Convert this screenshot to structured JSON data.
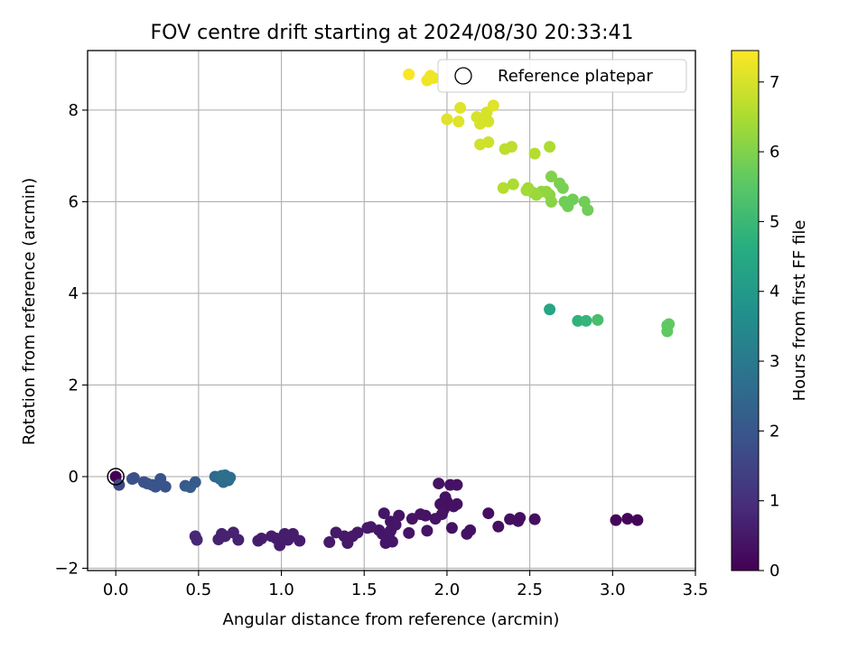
{
  "chart_data": {
    "type": "scatter",
    "title": "FOV centre drift starting at 2024/08/30 20:33:41",
    "xlabel": "Angular distance from reference (arcmin)",
    "ylabel": "Rotation from reference (arcmin)",
    "xlim": [
      -0.17,
      3.5
    ],
    "ylim": [
      -2.05,
      9.3
    ],
    "xticks": [
      "0.0",
      "0.5",
      "1.0",
      "1.5",
      "2.0",
      "2.5",
      "3.0",
      "3.5"
    ],
    "xtick_values": [
      0,
      0.5,
      1.0,
      1.5,
      2.0,
      2.5,
      3.0,
      3.5
    ],
    "yticks": [
      "−2",
      "0",
      "2",
      "4",
      "6",
      "8"
    ],
    "ytick_values": [
      -2,
      0,
      2,
      4,
      6,
      8
    ],
    "grid": true,
    "legend": {
      "position": "top-right",
      "entries": [
        "Reference platepar"
      ]
    },
    "colorbar": {
      "label": "Hours from first FF file",
      "colormap": "viridis",
      "range": [
        0,
        7.45
      ],
      "ticks": [
        "0",
        "1",
        "2",
        "3",
        "4",
        "5",
        "6",
        "7"
      ],
      "tick_values": [
        0,
        1,
        2,
        3,
        4,
        5,
        6,
        7
      ]
    },
    "reference_point": {
      "x": 0,
      "y": 0
    },
    "points": [
      {
        "x": 0.0,
        "y": 0.0,
        "c": 0.0
      },
      {
        "x": 3.02,
        "y": -0.95,
        "c": 0.1
      },
      {
        "x": 3.09,
        "y": -0.92,
        "c": 0.1
      },
      {
        "x": 3.15,
        "y": -0.95,
        "c": 0.1
      },
      {
        "x": 2.53,
        "y": -0.93,
        "c": 0.3
      },
      {
        "x": 2.44,
        "y": -0.9,
        "c": 0.3
      },
      {
        "x": 2.38,
        "y": -0.93,
        "c": 0.3
      },
      {
        "x": 2.43,
        "y": -0.97,
        "c": 0.3
      },
      {
        "x": 2.31,
        "y": -1.09,
        "c": 0.3
      },
      {
        "x": 2.25,
        "y": -0.8,
        "c": 0.3
      },
      {
        "x": 2.14,
        "y": -1.17,
        "c": 0.35
      },
      {
        "x": 2.12,
        "y": -1.25,
        "c": 0.35
      },
      {
        "x": 2.03,
        "y": -1.12,
        "c": 0.35
      },
      {
        "x": 2.06,
        "y": -0.6,
        "c": 0.35
      },
      {
        "x": 2.0,
        "y": -0.55,
        "c": 0.35
      },
      {
        "x": 1.99,
        "y": -0.45,
        "c": 0.35
      },
      {
        "x": 1.98,
        "y": -0.72,
        "c": 0.35
      },
      {
        "x": 1.96,
        "y": -0.6,
        "c": 0.35
      },
      {
        "x": 1.95,
        "y": -0.15,
        "c": 0.35
      },
      {
        "x": 2.02,
        "y": -0.18,
        "c": 0.35
      },
      {
        "x": 2.06,
        "y": -0.18,
        "c": 0.35
      },
      {
        "x": 2.04,
        "y": -0.65,
        "c": 0.35
      },
      {
        "x": 1.97,
        "y": -0.82,
        "c": 0.4
      },
      {
        "x": 1.93,
        "y": -0.92,
        "c": 0.4
      },
      {
        "x": 1.87,
        "y": -0.85,
        "c": 0.4
      },
      {
        "x": 1.84,
        "y": -0.82,
        "c": 0.4
      },
      {
        "x": 1.88,
        "y": -1.18,
        "c": 0.4
      },
      {
        "x": 1.77,
        "y": -1.23,
        "c": 0.4
      },
      {
        "x": 1.79,
        "y": -0.92,
        "c": 0.4
      },
      {
        "x": 1.71,
        "y": -0.85,
        "c": 0.4
      },
      {
        "x": 1.66,
        "y": -0.98,
        "c": 0.4
      },
      {
        "x": 1.62,
        "y": -0.8,
        "c": 0.45
      },
      {
        "x": 1.69,
        "y": -1.05,
        "c": 0.45
      },
      {
        "x": 1.66,
        "y": -1.18,
        "c": 0.45
      },
      {
        "x": 1.61,
        "y": -1.25,
        "c": 0.45
      },
      {
        "x": 1.59,
        "y": -1.17,
        "c": 0.45
      },
      {
        "x": 1.65,
        "y": -1.25,
        "c": 0.45
      },
      {
        "x": 1.63,
        "y": -1.45,
        "c": 0.45
      },
      {
        "x": 1.67,
        "y": -1.42,
        "c": 0.45
      },
      {
        "x": 1.54,
        "y": -1.1,
        "c": 0.5
      },
      {
        "x": 1.52,
        "y": -1.12,
        "c": 0.5
      },
      {
        "x": 1.46,
        "y": -1.22,
        "c": 0.5
      },
      {
        "x": 1.43,
        "y": -1.3,
        "c": 0.5
      },
      {
        "x": 1.38,
        "y": -1.3,
        "c": 0.5
      },
      {
        "x": 1.4,
        "y": -1.45,
        "c": 0.5
      },
      {
        "x": 1.33,
        "y": -1.22,
        "c": 0.5
      },
      {
        "x": 1.29,
        "y": -1.43,
        "c": 0.5
      },
      {
        "x": 1.11,
        "y": -1.4,
        "c": 0.6
      },
      {
        "x": 1.07,
        "y": -1.25,
        "c": 0.6
      },
      {
        "x": 1.06,
        "y": -1.3,
        "c": 0.6
      },
      {
        "x": 1.04,
        "y": -1.38,
        "c": 0.6
      },
      {
        "x": 1.02,
        "y": -1.25,
        "c": 0.6
      },
      {
        "x": 0.99,
        "y": -1.5,
        "c": 0.6
      },
      {
        "x": 0.97,
        "y": -1.35,
        "c": 0.6
      },
      {
        "x": 0.94,
        "y": -1.3,
        "c": 0.6
      },
      {
        "x": 0.88,
        "y": -1.35,
        "c": 0.6
      },
      {
        "x": 0.86,
        "y": -1.4,
        "c": 0.6
      },
      {
        "x": 0.74,
        "y": -1.38,
        "c": 0.7
      },
      {
        "x": 0.71,
        "y": -1.22,
        "c": 0.7
      },
      {
        "x": 0.66,
        "y": -1.3,
        "c": 0.7
      },
      {
        "x": 0.64,
        "y": -1.25,
        "c": 0.7
      },
      {
        "x": 0.62,
        "y": -1.37,
        "c": 0.7
      },
      {
        "x": 0.49,
        "y": -1.38,
        "c": 0.8
      },
      {
        "x": 0.48,
        "y": -1.3,
        "c": 0.8
      },
      {
        "x": 0.02,
        "y": -0.18,
        "c": 1.6
      },
      {
        "x": 0.1,
        "y": -0.05,
        "c": 1.8
      },
      {
        "x": 0.11,
        "y": -0.03,
        "c": 1.8
      },
      {
        "x": 0.17,
        "y": -0.12,
        "c": 1.8
      },
      {
        "x": 0.19,
        "y": -0.15,
        "c": 1.8
      },
      {
        "x": 0.22,
        "y": -0.18,
        "c": 1.9
      },
      {
        "x": 0.24,
        "y": -0.22,
        "c": 1.9
      },
      {
        "x": 0.27,
        "y": -0.05,
        "c": 1.9
      },
      {
        "x": 0.3,
        "y": -0.22,
        "c": 1.9
      },
      {
        "x": 0.26,
        "y": -0.16,
        "c": 1.9
      },
      {
        "x": 0.42,
        "y": -0.2,
        "c": 2.1
      },
      {
        "x": 0.45,
        "y": -0.23,
        "c": 2.2
      },
      {
        "x": 0.48,
        "y": -0.12,
        "c": 2.1
      },
      {
        "x": 0.6,
        "y": 0.0,
        "c": 2.5
      },
      {
        "x": 0.63,
        "y": -0.05,
        "c": 2.6
      },
      {
        "x": 0.66,
        "y": 0.03,
        "c": 2.6
      },
      {
        "x": 0.65,
        "y": -0.12,
        "c": 2.6
      },
      {
        "x": 0.68,
        "y": -0.08,
        "c": 2.6
      },
      {
        "x": 0.69,
        "y": -0.02,
        "c": 2.7
      },
      {
        "x": 0.64,
        "y": 0.02,
        "c": 2.7
      },
      {
        "x": 2.62,
        "y": 3.65,
        "c": 4.4
      },
      {
        "x": 2.79,
        "y": 3.4,
        "c": 4.8
      },
      {
        "x": 2.84,
        "y": 3.4,
        "c": 4.9
      },
      {
        "x": 2.91,
        "y": 3.42,
        "c": 5.2
      },
      {
        "x": 3.33,
        "y": 3.3,
        "c": 5.6
      },
      {
        "x": 3.34,
        "y": 3.33,
        "c": 5.6
      },
      {
        "x": 3.33,
        "y": 3.17,
        "c": 5.6
      },
      {
        "x": 2.85,
        "y": 5.82,
        "c": 5.8
      },
      {
        "x": 2.83,
        "y": 6.0,
        "c": 5.8
      },
      {
        "x": 2.76,
        "y": 6.05,
        "c": 5.8
      },
      {
        "x": 2.73,
        "y": 5.9,
        "c": 5.8
      },
      {
        "x": 2.71,
        "y": 6.0,
        "c": 5.8
      },
      {
        "x": 2.7,
        "y": 6.3,
        "c": 5.9
      },
      {
        "x": 2.68,
        "y": 6.4,
        "c": 5.9
      },
      {
        "x": 2.63,
        "y": 6.55,
        "c": 6.0
      },
      {
        "x": 2.63,
        "y": 6.0,
        "c": 6.1
      },
      {
        "x": 2.62,
        "y": 6.15,
        "c": 6.1
      },
      {
        "x": 2.6,
        "y": 6.22,
        "c": 6.2
      },
      {
        "x": 2.57,
        "y": 6.22,
        "c": 6.2
      },
      {
        "x": 2.54,
        "y": 6.15,
        "c": 6.3
      },
      {
        "x": 2.52,
        "y": 6.2,
        "c": 6.3
      },
      {
        "x": 2.49,
        "y": 6.3,
        "c": 6.4
      },
      {
        "x": 2.48,
        "y": 6.25,
        "c": 6.4
      },
      {
        "x": 2.4,
        "y": 6.38,
        "c": 6.5
      },
      {
        "x": 2.34,
        "y": 6.3,
        "c": 6.6
      },
      {
        "x": 2.62,
        "y": 7.2,
        "c": 6.5
      },
      {
        "x": 2.53,
        "y": 7.05,
        "c": 6.6
      },
      {
        "x": 2.39,
        "y": 7.2,
        "c": 6.7
      },
      {
        "x": 2.35,
        "y": 7.15,
        "c": 6.7
      },
      {
        "x": 2.25,
        "y": 7.3,
        "c": 6.9
      },
      {
        "x": 2.2,
        "y": 7.25,
        "c": 6.9
      },
      {
        "x": 2.25,
        "y": 7.75,
        "c": 7.0
      },
      {
        "x": 2.22,
        "y": 7.8,
        "c": 7.0
      },
      {
        "x": 2.2,
        "y": 7.7,
        "c": 7.0
      },
      {
        "x": 2.18,
        "y": 7.85,
        "c": 7.0
      },
      {
        "x": 2.24,
        "y": 7.95,
        "c": 7.0
      },
      {
        "x": 2.28,
        "y": 8.1,
        "c": 7.1
      },
      {
        "x": 2.08,
        "y": 8.05,
        "c": 7.1
      },
      {
        "x": 2.07,
        "y": 7.75,
        "c": 7.1
      },
      {
        "x": 2.0,
        "y": 7.8,
        "c": 7.1
      },
      {
        "x": 1.92,
        "y": 8.7,
        "c": 7.3
      },
      {
        "x": 1.9,
        "y": 8.75,
        "c": 7.3
      },
      {
        "x": 1.88,
        "y": 8.65,
        "c": 7.3
      },
      {
        "x": 1.77,
        "y": 8.78,
        "c": 7.4
      }
    ]
  }
}
